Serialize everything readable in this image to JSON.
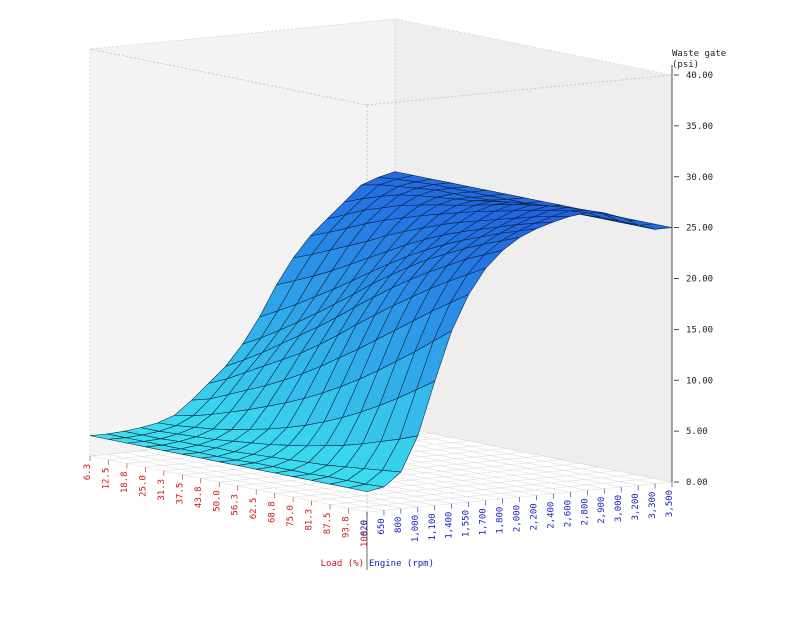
{
  "chart_data": {
    "type": "surface",
    "title": "",
    "z_axis": {
      "label_line1": "Waste gate",
      "label_line2": "(psi)",
      "ticks": [
        "40.00",
        "35.00",
        "30.00",
        "25.00",
        "20.00",
        "15.00",
        "10.00",
        "5.00",
        "0.00"
      ],
      "range": [
        0,
        40
      ]
    },
    "load_axis": {
      "label": "Load (%)",
      "ticks": [
        "6.3",
        "12.5",
        "18.8",
        "25.0",
        "31.3",
        "37.5",
        "43.8",
        "50.0",
        "56.3",
        "62.5",
        "68.8",
        "75.0",
        "81.3",
        "87.5",
        "93.8",
        "100.0"
      ]
    },
    "rpm_axis": {
      "label": "Engine (rpm)",
      "ticks": [
        "620",
        "650",
        "800",
        "1,000",
        "1,100",
        "1,400",
        "1,550",
        "1,700",
        "1,800",
        "2,000",
        "2,200",
        "2,400",
        "2,600",
        "2,800",
        "2,900",
        "3,000",
        "3,200",
        "3,300",
        "3,500"
      ]
    },
    "grid": true,
    "colors": {
      "low": "#3ee8f0",
      "high": "#1f5ce0",
      "edge": "#0a1f3a",
      "load_labels": "#d01818",
      "rpm_labels": "#1818c0"
    },
    "z_values": [
      [
        2.0,
        2.0,
        2.1,
        2.3,
        2.6,
        3.2,
        4.5,
        6.0,
        7.5,
        9.5,
        12.0,
        15.0,
        17.5,
        19.5,
        21.0,
        22.5,
        24.0,
        24.6,
        25.0
      ],
      [
        2.0,
        2.0,
        2.1,
        2.3,
        2.7,
        3.5,
        5.0,
        6.8,
        8.5,
        10.5,
        13.0,
        15.8,
        18.2,
        20.2,
        21.8,
        23.2,
        24.4,
        24.8,
        25.0
      ],
      [
        2.0,
        2.0,
        2.1,
        2.4,
        2.9,
        4.0,
        5.8,
        7.8,
        9.6,
        11.6,
        14.0,
        16.6,
        19.0,
        21.0,
        22.6,
        23.8,
        24.6,
        24.9,
        25.0
      ],
      [
        2.0,
        2.0,
        2.2,
        2.5,
        3.1,
        4.6,
        6.6,
        8.8,
        10.8,
        12.8,
        15.1,
        17.5,
        19.8,
        21.8,
        23.2,
        24.3,
        24.8,
        25.0,
        25.0
      ],
      [
        2.0,
        2.0,
        2.2,
        2.6,
        3.4,
        5.2,
        7.4,
        9.8,
        12.0,
        14.0,
        16.2,
        18.5,
        20.6,
        22.5,
        23.8,
        24.6,
        25.0,
        25.0,
        25.0
      ],
      [
        2.0,
        2.0,
        2.3,
        2.8,
        3.8,
        5.9,
        8.3,
        10.8,
        13.2,
        15.3,
        17.4,
        19.5,
        21.5,
        23.1,
        24.2,
        24.8,
        25.0,
        25.0,
        25.0
      ],
      [
        2.0,
        2.0,
        2.3,
        3.0,
        4.2,
        6.6,
        9.3,
        12.0,
        14.5,
        16.6,
        18.6,
        20.5,
        22.3,
        23.7,
        24.6,
        25.0,
        25.0,
        25.0,
        25.0
      ],
      [
        2.0,
        2.0,
        2.4,
        3.2,
        4.7,
        7.4,
        10.4,
        13.3,
        15.9,
        18.0,
        19.8,
        21.5,
        23.0,
        24.2,
        24.9,
        25.2,
        25.1,
        25.0,
        25.0
      ],
      [
        2.0,
        2.1,
        2.5,
        3.5,
        5.3,
        8.3,
        11.6,
        14.7,
        17.2,
        19.2,
        20.9,
        22.4,
        23.7,
        24.7,
        25.3,
        25.5,
        25.2,
        25.0,
        25.0
      ],
      [
        2.0,
        2.1,
        2.6,
        3.8,
        6.0,
        9.3,
        12.8,
        16.0,
        18.5,
        20.4,
        21.9,
        23.2,
        24.3,
        25.2,
        25.7,
        25.8,
        25.3,
        25.0,
        25.0
      ],
      [
        2.0,
        2.1,
        2.7,
        4.2,
        6.8,
        10.4,
        14.1,
        17.3,
        19.7,
        21.5,
        22.8,
        23.9,
        24.8,
        25.6,
        26.1,
        26.0,
        25.4,
        25.0,
        25.0
      ],
      [
        2.0,
        2.1,
        2.8,
        4.6,
        7.7,
        11.6,
        15.4,
        18.5,
        20.8,
        22.4,
        23.6,
        24.5,
        25.3,
        26.0,
        26.4,
        26.2,
        25.5,
        25.0,
        25.0
      ],
      [
        2.0,
        2.2,
        3.0,
        5.1,
        8.7,
        12.9,
        16.7,
        19.7,
        21.8,
        23.3,
        24.3,
        25.1,
        25.8,
        26.4,
        26.7,
        26.3,
        25.5,
        25.0,
        25.0
      ],
      [
        2.0,
        2.2,
        3.2,
        5.7,
        9.8,
        14.2,
        18.0,
        20.8,
        22.8,
        24.1,
        25.0,
        25.7,
        26.3,
        26.8,
        26.9,
        26.4,
        25.6,
        25.0,
        25.0
      ],
      [
        2.0,
        2.2,
        3.4,
        6.3,
        11.0,
        15.6,
        19.2,
        21.8,
        23.6,
        24.8,
        25.6,
        26.2,
        26.7,
        27.1,
        27.0,
        26.5,
        25.6,
        25.0,
        25.0
      ],
      [
        2.0,
        2.3,
        3.6,
        7.0,
        12.2,
        17.0,
        20.4,
        22.8,
        24.4,
        25.5,
        26.2,
        26.7,
        27.1,
        27.3,
        27.1,
        26.5,
        25.6,
        25.0,
        25.0
      ]
    ]
  }
}
